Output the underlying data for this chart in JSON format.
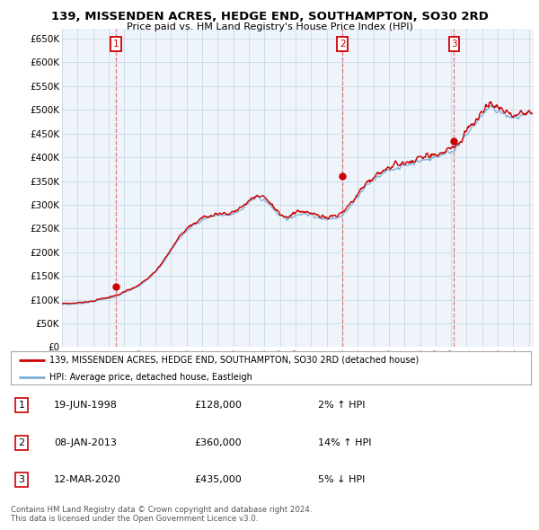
{
  "title": "139, MISSENDEN ACRES, HEDGE END, SOUTHAMPTON, SO30 2RD",
  "subtitle": "Price paid vs. HM Land Registry's House Price Index (HPI)",
  "ytick_values": [
    0,
    50000,
    100000,
    150000,
    200000,
    250000,
    300000,
    350000,
    400000,
    450000,
    500000,
    550000,
    600000,
    650000
  ],
  "xlim_start": 1995.3,
  "xlim_end": 2025.3,
  "ylim_min": 0,
  "ylim_max": 670000,
  "hpi_color": "#7bafd4",
  "price_color": "#cc0000",
  "dashed_color": "#dd6666",
  "sales": [
    {
      "label": "1",
      "date_num": 1998.46,
      "price": 128000
    },
    {
      "label": "2",
      "date_num": 2013.02,
      "price": 360000
    },
    {
      "label": "3",
      "date_num": 2020.19,
      "price": 435000
    }
  ],
  "sale_marker_color": "#cc0000",
  "legend_price_label": "139, MISSENDEN ACRES, HEDGE END, SOUTHAMPTON, SO30 2RD (detached house)",
  "legend_hpi_label": "HPI: Average price, detached house, Eastleigh",
  "table_rows": [
    {
      "num": "1",
      "date": "19-JUN-1998",
      "price": "£128,000",
      "change": "2% ↑ HPI"
    },
    {
      "num": "2",
      "date": "08-JAN-2013",
      "price": "£360,000",
      "change": "14% ↑ HPI"
    },
    {
      "num": "3",
      "date": "12-MAR-2020",
      "price": "£435,000",
      "change": "5% ↓ HPI"
    }
  ],
  "footer": "Contains HM Land Registry data © Crown copyright and database right 2024.\nThis data is licensed under the Open Government Licence v3.0.",
  "bg_color": "#ffffff",
  "grid_color": "#c8d8e8",
  "plot_bg": "#eef4fa"
}
